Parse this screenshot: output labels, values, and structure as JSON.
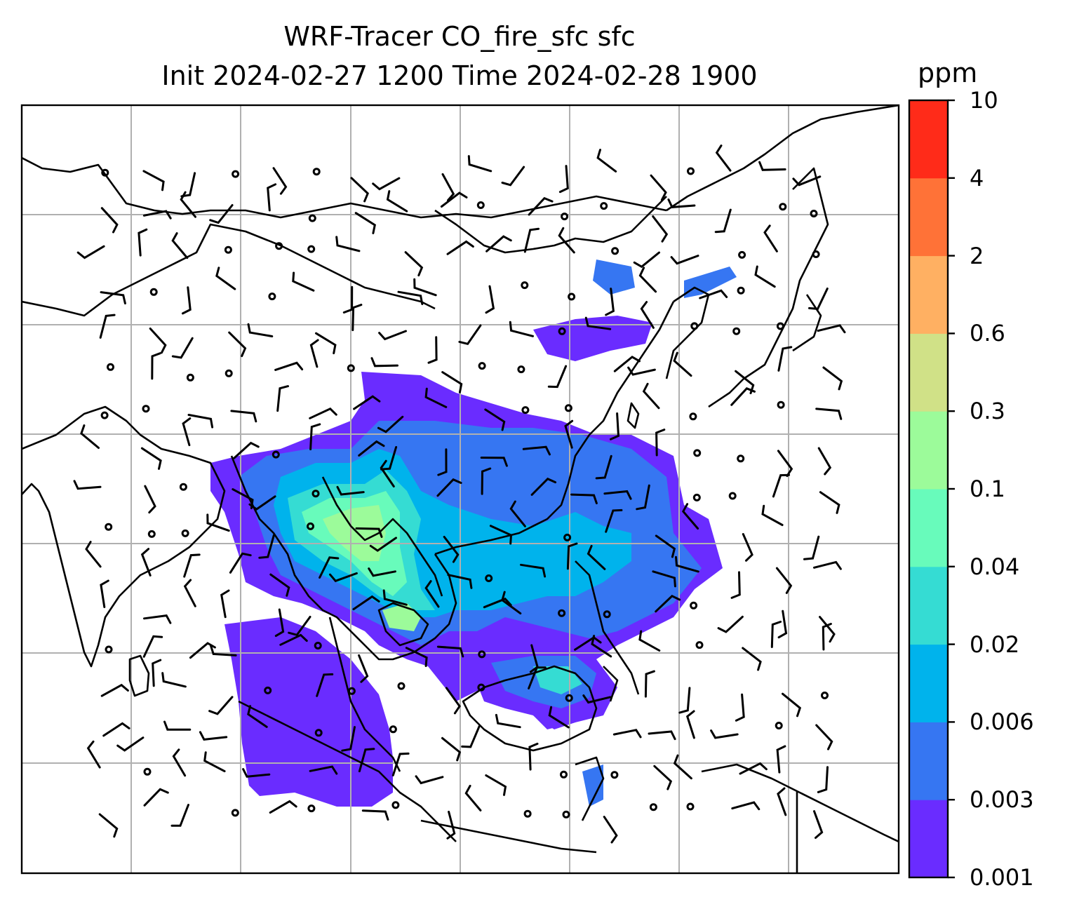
{
  "title": {
    "line1": "WRF-Tracer CO_fire_sfc sfc",
    "line2": "Init 2024-02-27 1200 Time 2024-02-28 1900"
  },
  "colorbar": {
    "units": "ppm",
    "levels": [
      "0.001",
      "0.003",
      "0.006",
      "0.02",
      "0.04",
      "0.1",
      "0.3",
      "0.6",
      "2",
      "4",
      "10"
    ],
    "colors": [
      "#6a2cff",
      "#3676f2",
      "#00b3ec",
      "#35dcd3",
      "#68fbbb",
      "#9cfb9a",
      "#d0e187",
      "#ffb062",
      "#ff7237",
      "#ff2b19"
    ]
  },
  "map": {
    "gridlines": "on",
    "coastlines": "on",
    "wind_barbs": "on"
  }
}
